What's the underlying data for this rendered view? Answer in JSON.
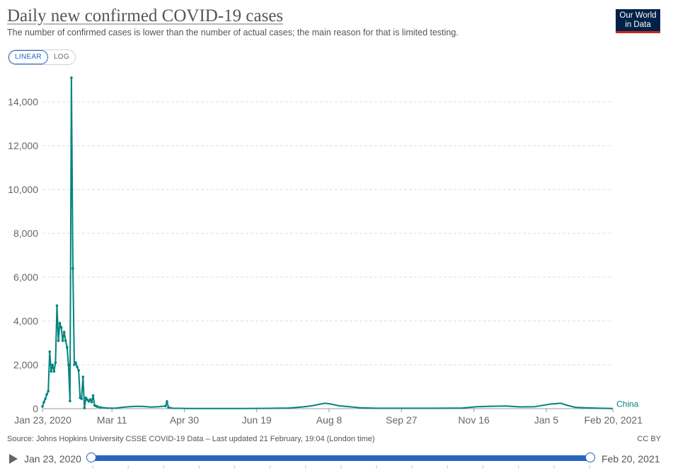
{
  "header": {
    "title": "Daily new confirmed COVID-19 cases",
    "subtitle": "The number of confirmed cases is lower than the number of actual cases; the main reason for that is limited testing."
  },
  "logo": {
    "line1": "Our World",
    "line2": "in Data",
    "bg_color": "#002147",
    "accent_color": "#ce261e"
  },
  "scale_toggle": {
    "linear_label": "LINEAR",
    "log_label": "LOG",
    "selected": "LINEAR"
  },
  "footer": {
    "source": "Source: Johns Hopkins University CSSE COVID-19 Data – Last updated 21 February, 19:04 (London time)",
    "license": "CC BY"
  },
  "timeline": {
    "start_label": "Jan 23, 2020",
    "end_label": "Feb 20, 2021",
    "accent_color": "#2a64c0"
  },
  "chart_data": {
    "type": "line",
    "title": "Daily new confirmed COVID-19 cases",
    "xlabel": "",
    "ylabel": "",
    "x_range": [
      0,
      394
    ],
    "x_unit": "days since Jan 23, 2020",
    "ylim": [
      0,
      15000
    ],
    "grid": true,
    "y_ticks": [
      {
        "value": 0,
        "label": "0"
      },
      {
        "value": 2000,
        "label": "2,000"
      },
      {
        "value": 4000,
        "label": "4,000"
      },
      {
        "value": 6000,
        "label": "6,000"
      },
      {
        "value": 8000,
        "label": "8,000"
      },
      {
        "value": 10000,
        "label": "10,000"
      },
      {
        "value": 12000,
        "label": "12,000"
      },
      {
        "value": 14000,
        "label": "14,000"
      }
    ],
    "x_ticks": [
      {
        "day": 0,
        "label": "Jan 23, 2020"
      },
      {
        "day": 48,
        "label": "Mar 11"
      },
      {
        "day": 98,
        "label": "Apr 30"
      },
      {
        "day": 148,
        "label": "Jun 19"
      },
      {
        "day": 198,
        "label": "Aug 8"
      },
      {
        "day": 248,
        "label": "Sep 27"
      },
      {
        "day": 298,
        "label": "Nov 16"
      },
      {
        "day": 348,
        "label": "Jan 5"
      },
      {
        "day": 394,
        "label": "Feb 20, 2021"
      }
    ],
    "series": [
      {
        "name": "China",
        "color": "#00847e",
        "points": [
          [
            0,
            100
          ],
          [
            1,
            300
          ],
          [
            2,
            450
          ],
          [
            3,
            650
          ],
          [
            4,
            800
          ],
          [
            5,
            2600
          ],
          [
            6,
            1700
          ],
          [
            7,
            2000
          ],
          [
            8,
            1700
          ],
          [
            9,
            2100
          ],
          [
            10,
            4700
          ],
          [
            11,
            3100
          ],
          [
            12,
            3900
          ],
          [
            13,
            3700
          ],
          [
            14,
            3100
          ],
          [
            15,
            3500
          ],
          [
            16,
            3100
          ],
          [
            17,
            2800
          ],
          [
            18,
            2000
          ],
          [
            19,
            350
          ],
          [
            20,
            15100
          ],
          [
            21,
            6400
          ],
          [
            22,
            2000
          ],
          [
            23,
            2100
          ],
          [
            24,
            1900
          ],
          [
            25,
            1750
          ],
          [
            26,
            500
          ],
          [
            27,
            450
          ],
          [
            28,
            1450
          ],
          [
            29,
            30
          ],
          [
            30,
            500
          ],
          [
            31,
            410
          ],
          [
            32,
            330
          ],
          [
            33,
            420
          ],
          [
            34,
            300
          ],
          [
            35,
            600
          ],
          [
            36,
            150
          ],
          [
            37,
            120
          ],
          [
            38,
            90
          ],
          [
            40,
            60
          ],
          [
            45,
            30
          ],
          [
            50,
            20
          ],
          [
            55,
            60
          ],
          [
            60,
            90
          ],
          [
            65,
            110
          ],
          [
            70,
            100
          ],
          [
            75,
            70
          ],
          [
            80,
            90
          ],
          [
            85,
            120
          ],
          [
            86,
            330
          ],
          [
            87,
            60
          ],
          [
            90,
            20
          ],
          [
            100,
            10
          ],
          [
            120,
            10
          ],
          [
            140,
            10
          ],
          [
            160,
            20
          ],
          [
            170,
            30
          ],
          [
            180,
            80
          ],
          [
            185,
            120
          ],
          [
            190,
            180
          ],
          [
            195,
            250
          ],
          [
            200,
            200
          ],
          [
            205,
            130
          ],
          [
            210,
            100
          ],
          [
            220,
            40
          ],
          [
            230,
            20
          ],
          [
            250,
            20
          ],
          [
            270,
            20
          ],
          [
            290,
            30
          ],
          [
            300,
            90
          ],
          [
            310,
            110
          ],
          [
            320,
            120
          ],
          [
            330,
            80
          ],
          [
            340,
            90
          ],
          [
            350,
            200
          ],
          [
            355,
            230
          ],
          [
            358,
            250
          ],
          [
            362,
            160
          ],
          [
            368,
            60
          ],
          [
            375,
            40
          ],
          [
            385,
            20
          ],
          [
            394,
            10
          ]
        ]
      }
    ]
  }
}
